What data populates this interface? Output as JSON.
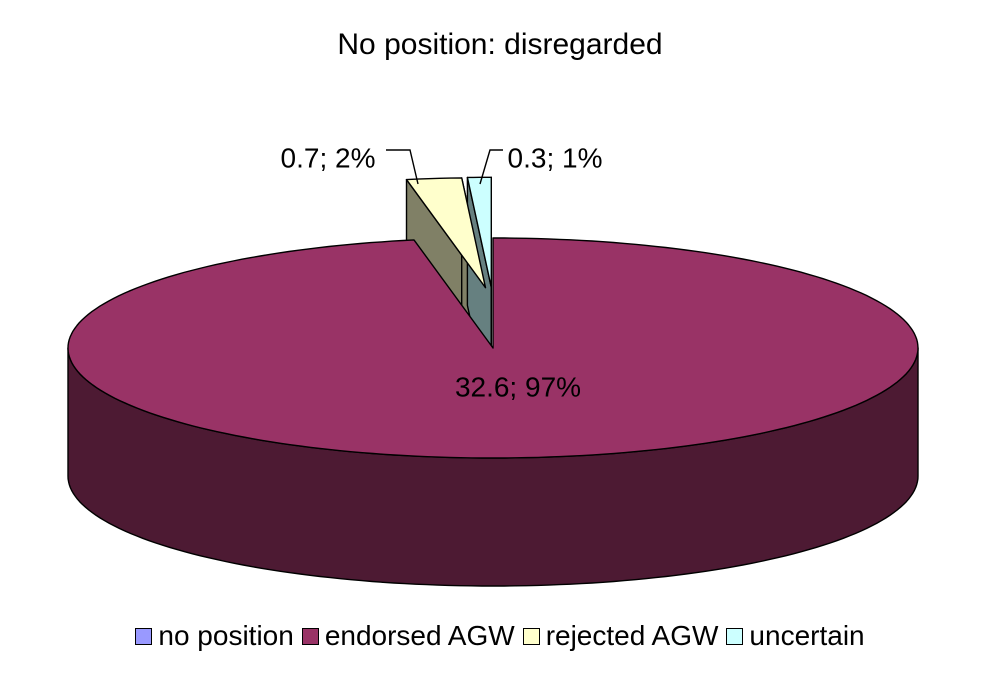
{
  "chart_data": {
    "type": "pie",
    "title": "No position: disregarded",
    "categories": [
      "no position",
      "endorsed AGW",
      "rejected AGW",
      "uncertain"
    ],
    "values": [
      0,
      32.6,
      0.7,
      0.3
    ],
    "percent_labels": [
      "",
      "97%",
      "2%",
      "1%"
    ],
    "data_labels": [
      "",
      "32.6; 97%",
      "0.7; 2%",
      "0.3; 1%"
    ],
    "colors": [
      "#9999ff",
      "#993366",
      "#ffffcc",
      "#ccffff"
    ],
    "side_colors": [
      "#4d4d80",
      "#4d1a33",
      "#808066",
      "#668080"
    ],
    "exploded": [
      "rejected AGW",
      "uncertain"
    ],
    "style": "3d",
    "legend_position": "bottom"
  }
}
